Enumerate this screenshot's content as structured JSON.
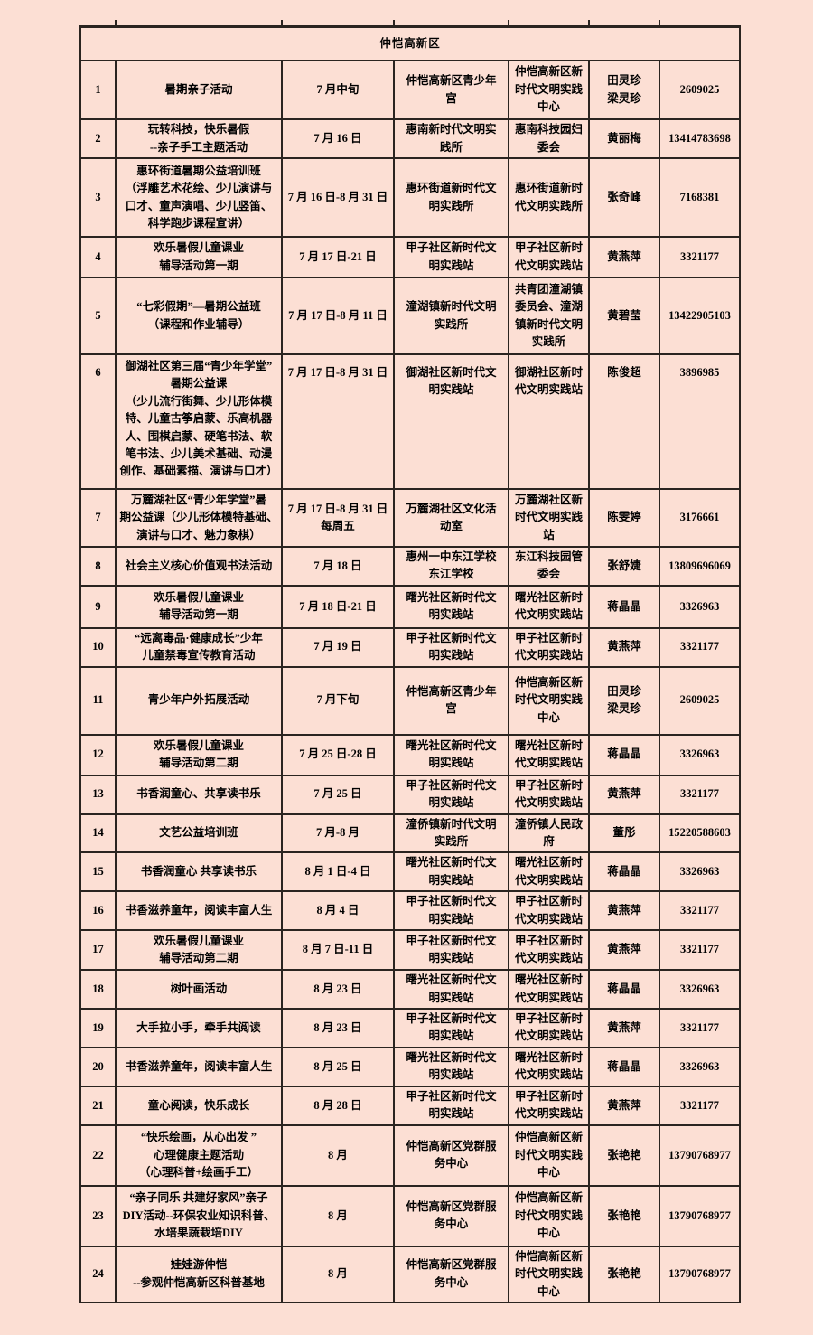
{
  "region_header": "仲恺高新区",
  "colors": {
    "background": "#fcdfd4",
    "border": "#2a2420",
    "text": "#000000"
  },
  "table": {
    "rows": [
      {
        "no": "1",
        "activity": "暑期亲子活动",
        "date": "7 月中旬",
        "location": "仲恺高新区青少年\n宫",
        "organizer": "仲恺高新区新\n时代文明实践\n中心",
        "contact": "田灵珍\n梁灵珍",
        "phone": "2609025"
      },
      {
        "no": "2",
        "activity": "玩转科技，快乐暑假\n--亲子手工主题活动",
        "date": "7 月 16 日",
        "location": "惠南新时代文明实\n践所",
        "organizer": "惠南科技园妇\n委会",
        "contact": "黄丽梅",
        "phone": "13414783698"
      },
      {
        "no": "3",
        "activity": "惠环街道暑期公益培训班\n（浮雕艺术花绘、少儿演讲与\n口才、童声演唱、少儿竖笛、\n科学跑步课程宣讲）",
        "date": "7 月 16 日-8 月 31 日",
        "location": "惠环街道新时代文\n明实践所",
        "organizer": "惠环街道新时\n代文明实践所",
        "contact": "张奇峰",
        "phone": "7168381"
      },
      {
        "no": "4",
        "activity": "欢乐暑假儿童课业\n辅导活动第一期",
        "date": "7 月 17 日-21 日",
        "location": "甲子社区新时代文\n明实践站",
        "organizer": "甲子社区新时\n代文明实践站",
        "contact": "黄燕萍",
        "phone": "3321177"
      },
      {
        "no": "5",
        "activity": "“七彩假期”—暑期公益班\n（课程和作业辅导）",
        "date": "7 月 17 日-8 月 11 日",
        "location": "潼湖镇新时代文明\n实践所",
        "organizer": "共青团潼湖镇\n委员会、潼湖\n镇新时代文明\n实践所",
        "contact": "黄碧莹",
        "phone": "13422905103"
      },
      {
        "no": "6",
        "activity": "御湖社区第三届“青少年学堂”\n暑期公益课\n（少儿流行街舞、少儿形体模\n特、儿童古筝启蒙、乐高机器\n人、围棋启蒙、硬笔书法、软\n笔书法、少儿美术基础、动漫\n创作、基础素描、演讲与口才）",
        "date": "7 月 17 日-8 月 31 日",
        "location": "御湖社区新时代文\n明实践站",
        "organizer": "御湖社区新时\n代文明实践站",
        "contact": "陈俊超",
        "phone": "3896985"
      },
      {
        "no": "7",
        "activity": "万麓湖社区“青少年学堂”暑\n期公益课（少儿形体模特基础、\n演讲与口才、魅力象棋）",
        "date": "7 月 17 日-8 月 31 日\n每周五",
        "location": "万麓湖社区文化活\n动室",
        "organizer": "万麓湖社区新\n时代文明实践\n站",
        "contact": "陈雯婷",
        "phone": "3176661"
      },
      {
        "no": "8",
        "activity": "社会主义核心价值观书法活动",
        "date": "7 月 18 日",
        "location": "惠州一中东江学校\n东江学校",
        "organizer": "东江科技园管\n委会",
        "contact": "张舒婕",
        "phone": "13809696069"
      },
      {
        "no": "9",
        "activity": "欢乐暑假儿童课业\n辅导活动第一期",
        "date": "7 月 18 日-21 日",
        "location": "曙光社区新时代文\n明实践站",
        "organizer": "曙光社区新时\n代文明实践站",
        "contact": "蒋晶晶",
        "phone": "3326963"
      },
      {
        "no": "10",
        "activity": "“远离毒品·健康成长”少年\n儿童禁毒宣传教育活动",
        "date": "7 月 19 日",
        "location": "甲子社区新时代文\n明实践站",
        "organizer": "甲子社区新时\n代文明实践站",
        "contact": "黄燕萍",
        "phone": "3321177"
      },
      {
        "no": "11",
        "activity": "青少年户外拓展活动",
        "date": "7 月下旬",
        "location": "仲恺高新区青少年\n宫",
        "organizer": "仲恺高新区新\n时代文明实践\n中心",
        "contact": "田灵珍\n梁灵珍",
        "phone": "2609025"
      },
      {
        "no": "12",
        "activity": "欢乐暑假儿童课业\n辅导活动第二期",
        "date": "7 月 25 日-28 日",
        "location": "曙光社区新时代文\n明实践站",
        "organizer": "曙光社区新时\n代文明实践站",
        "contact": "蒋晶晶",
        "phone": "3326963"
      },
      {
        "no": "13",
        "activity": "书香润童心、共享读书乐",
        "date": "7 月 25 日",
        "location": "甲子社区新时代文\n明实践站",
        "organizer": "甲子社区新时\n代文明实践站",
        "contact": "黄燕萍",
        "phone": "3321177"
      },
      {
        "no": "14",
        "activity": "文艺公益培训班",
        "date": "7 月-8 月",
        "location": "潼侨镇新时代文明\n实践所",
        "organizer": "潼侨镇人民政\n府",
        "contact": "董彤",
        "phone": "15220588603"
      },
      {
        "no": "15",
        "activity": "书香润童心 共享读书乐",
        "date": "8 月 1 日-4 日",
        "location": "曙光社区新时代文\n明实践站",
        "organizer": "曙光社区新时\n代文明实践站",
        "contact": "蒋晶晶",
        "phone": "3326963"
      },
      {
        "no": "16",
        "activity": "书香滋养童年，阅读丰富人生",
        "date": "8 月 4 日",
        "location": "甲子社区新时代文\n明实践站",
        "organizer": "甲子社区新时\n代文明实践站",
        "contact": "黄燕萍",
        "phone": "3321177"
      },
      {
        "no": "17",
        "activity": "欢乐暑假儿童课业\n辅导活动第二期",
        "date": "8 月 7 日-11 日",
        "location": "甲子社区新时代文\n明实践站",
        "organizer": "甲子社区新时\n代文明实践站",
        "contact": "黄燕萍",
        "phone": "3321177"
      },
      {
        "no": "18",
        "activity": "树叶画活动",
        "date": "8 月 23 日",
        "location": "曙光社区新时代文\n明实践站",
        "organizer": "曙光社区新时\n代文明实践站",
        "contact": "蒋晶晶",
        "phone": "3326963"
      },
      {
        "no": "19",
        "activity": "大手拉小手，牵手共阅读",
        "date": "8 月 23 日",
        "location": "甲子社区新时代文\n明实践站",
        "organizer": "甲子社区新时\n代文明实践站",
        "contact": "黄燕萍",
        "phone": "3321177"
      },
      {
        "no": "20",
        "activity": "书香滋养童年，阅读丰富人生",
        "date": "8 月 25 日",
        "location": "曙光社区新时代文\n明实践站",
        "organizer": "曙光社区新时\n代文明实践站",
        "contact": "蒋晶晶",
        "phone": "3326963"
      },
      {
        "no": "21",
        "activity": "童心阅读，快乐成长",
        "date": "8 月 28 日",
        "location": "甲子社区新时代文\n明实践站",
        "organizer": "甲子社区新时\n代文明实践站",
        "contact": "黄燕萍",
        "phone": "3321177"
      },
      {
        "no": "22",
        "activity": "“快乐绘画，从心出发 ”\n心理健康主题活动\n（心理科普+绘画手工）",
        "date": "8 月",
        "location": "仲恺高新区党群服\n务中心",
        "organizer": "仲恺高新区新\n时代文明实践\n中心",
        "contact": "张艳艳",
        "phone": "13790768977"
      },
      {
        "no": "23",
        "activity": "“亲子同乐 共建好家风”亲子\nDIY活动--环保农业知识科普、\n水培果蔬栽培DIY",
        "date": "8 月",
        "location": "仲恺高新区党群服\n务中心",
        "organizer": "仲恺高新区新\n时代文明实践\n中心",
        "contact": "张艳艳",
        "phone": "13790768977"
      },
      {
        "no": "24",
        "activity": "娃娃游仲恺\n--参观仲恺高新区科普基地",
        "date": "8 月",
        "location": "仲恺高新区党群服\n务中心",
        "organizer": "仲恺高新区新\n时代文明实践\n中心",
        "contact": "张艳艳",
        "phone": "13790768977"
      }
    ]
  }
}
